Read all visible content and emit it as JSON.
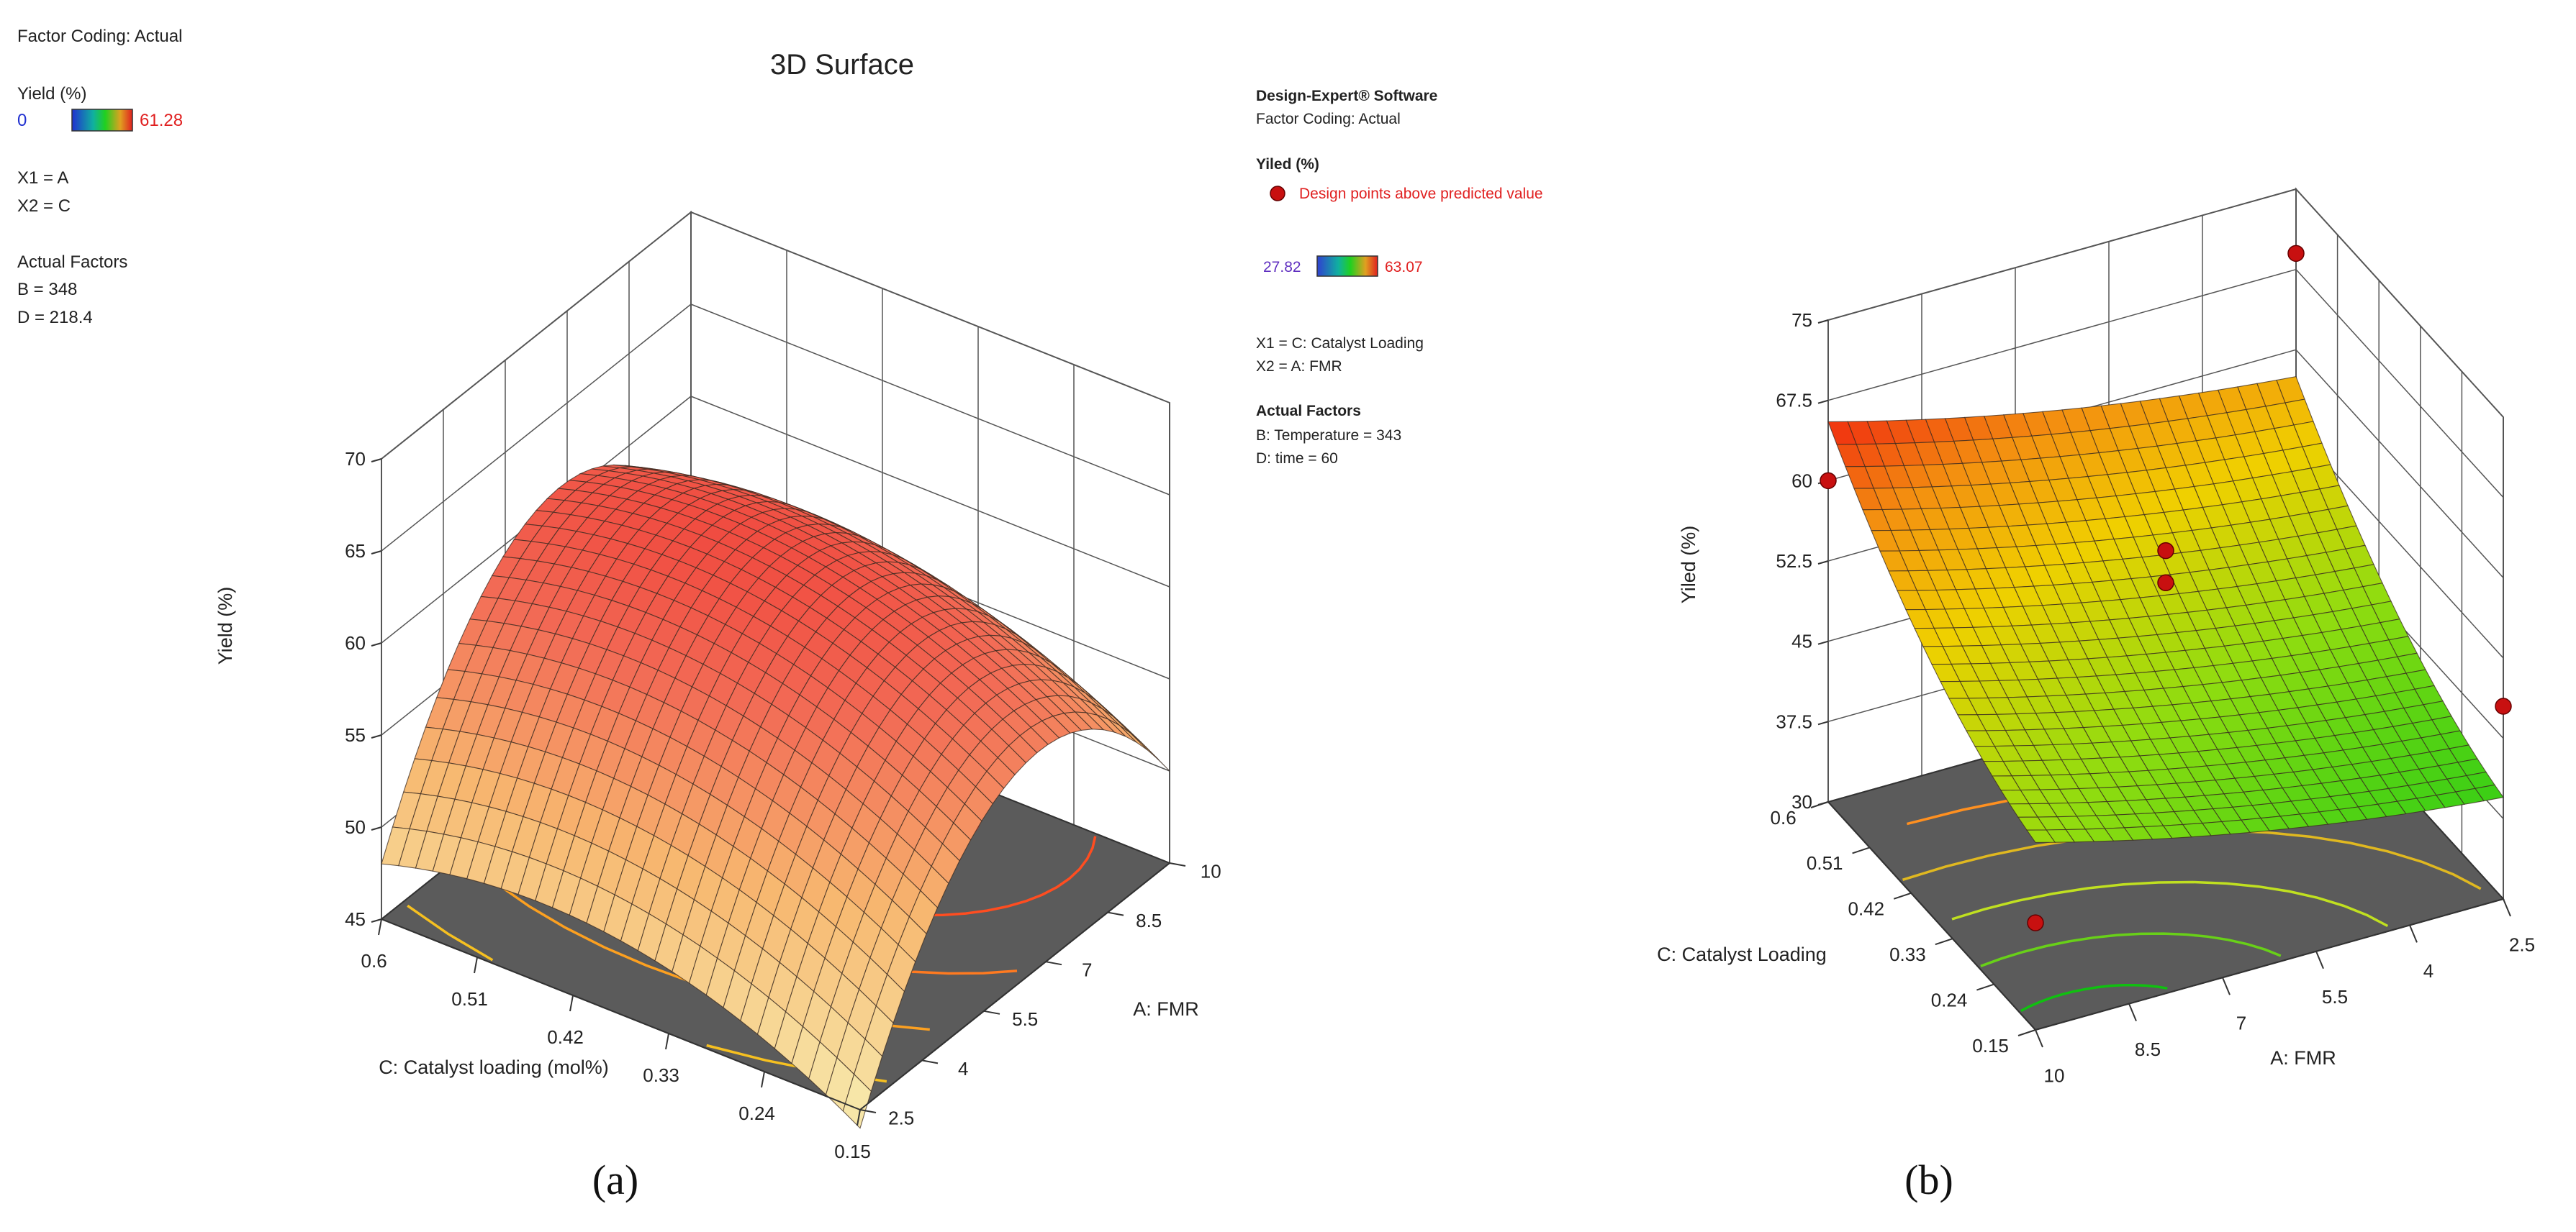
{
  "panel_a": {
    "header": {
      "factor_coding": "Factor Coding: Actual",
      "legend_title": "Yield (%)",
      "legend_min": "0",
      "legend_max": "61.28",
      "x1": "X1 = A",
      "x2": "X2 = C",
      "actual_factors": "Actual Factors",
      "factor_b": "B = 348",
      "factor_d": "D = 218.4"
    },
    "title": "3D Surface",
    "caption": "(a)"
  },
  "panel_b": {
    "header": {
      "software": "Design-Expert® Software",
      "factor_coding": "Factor Coding: Actual",
      "legend_title": "Yiled (%)",
      "design_points": "Design points above predicted value",
      "legend_min": "27.82",
      "legend_max": "63.07",
      "x1": "X1 = C: Catalyst Loading",
      "x2": "X2 = A: FMR",
      "actual_factors": "Actual Factors",
      "factor_b": "B: Temperature = 343",
      "factor_d": "D: time = 60"
    },
    "caption": "(b)"
  },
  "colors": {
    "floor": "#5b5b5b",
    "grid": "#4a4a4a",
    "point": "#c81010",
    "legend_min_a": "#2030d0",
    "legend_max_a": "#e02020",
    "legend_min_b": "#6030c0",
    "legend_max_b": "#e02020"
  },
  "chart_data": [
    {
      "type": "surface3d",
      "panel": "a",
      "title": "3D Surface",
      "zlabel": "Yield (%)",
      "xlabel": "A: FMR",
      "ylabel": "C: Catalyst loading (mol%)",
      "x_ticks": [
        "2.5",
        "4",
        "5.5",
        "7",
        "8.5",
        "10"
      ],
      "y_ticks": [
        "0.15",
        "0.24",
        "0.33",
        "0.42",
        "0.51",
        "0.6"
      ],
      "z_ticks": [
        "45",
        "50",
        "55",
        "60",
        "65",
        "70"
      ],
      "x_range": [
        2.5,
        10
      ],
      "y_range": [
        0.15,
        0.6
      ],
      "z_range": [
        45,
        70
      ],
      "color_range": [
        0,
        61.28
      ],
      "model": {
        "b0": 61.5,
        "bx": 3.0,
        "by": 2.0,
        "bxx": -9.5,
        "byy": -3.0,
        "bxy": 0.0
      },
      "contours": 6
    },
    {
      "type": "surface3d",
      "panel": "b",
      "title": "",
      "zlabel": "Yiled (%)",
      "xlabel": "A: FMR",
      "ylabel": "C: Catalyst Loading",
      "x_ticks": [
        "10",
        "8.5",
        "7",
        "5.5",
        "4",
        "2.5"
      ],
      "y_ticks": [
        "0.15",
        "0.24",
        "0.33",
        "0.42",
        "0.51",
        "0.6"
      ],
      "z_ticks": [
        "30",
        "37.5",
        "45",
        "52.5",
        "60",
        "67.5",
        "75"
      ],
      "x_range": [
        10,
        2.5
      ],
      "y_range": [
        0.15,
        0.6
      ],
      "z_range": [
        30,
        75
      ],
      "color_range": [
        27.82,
        63.07
      ],
      "model": {
        "b0": 48.5,
        "bx": -4.0,
        "by": 9.0,
        "bxx": 1.0,
        "byy": 3.0,
        "bxy": 0.0
      },
      "contours": 5,
      "design_points": [
        {
          "u": 0,
          "v": 0,
          "z": 40
        },
        {
          "u": 0,
          "v": 1,
          "z": 60
        },
        {
          "u": 1,
          "v": 1,
          "z": 69
        },
        {
          "u": 1,
          "v": 0,
          "z": 48
        },
        {
          "u": 0.5,
          "v": 0.5,
          "z": 58
        },
        {
          "u": 0.5,
          "v": 0.5,
          "z": 55
        }
      ]
    }
  ]
}
